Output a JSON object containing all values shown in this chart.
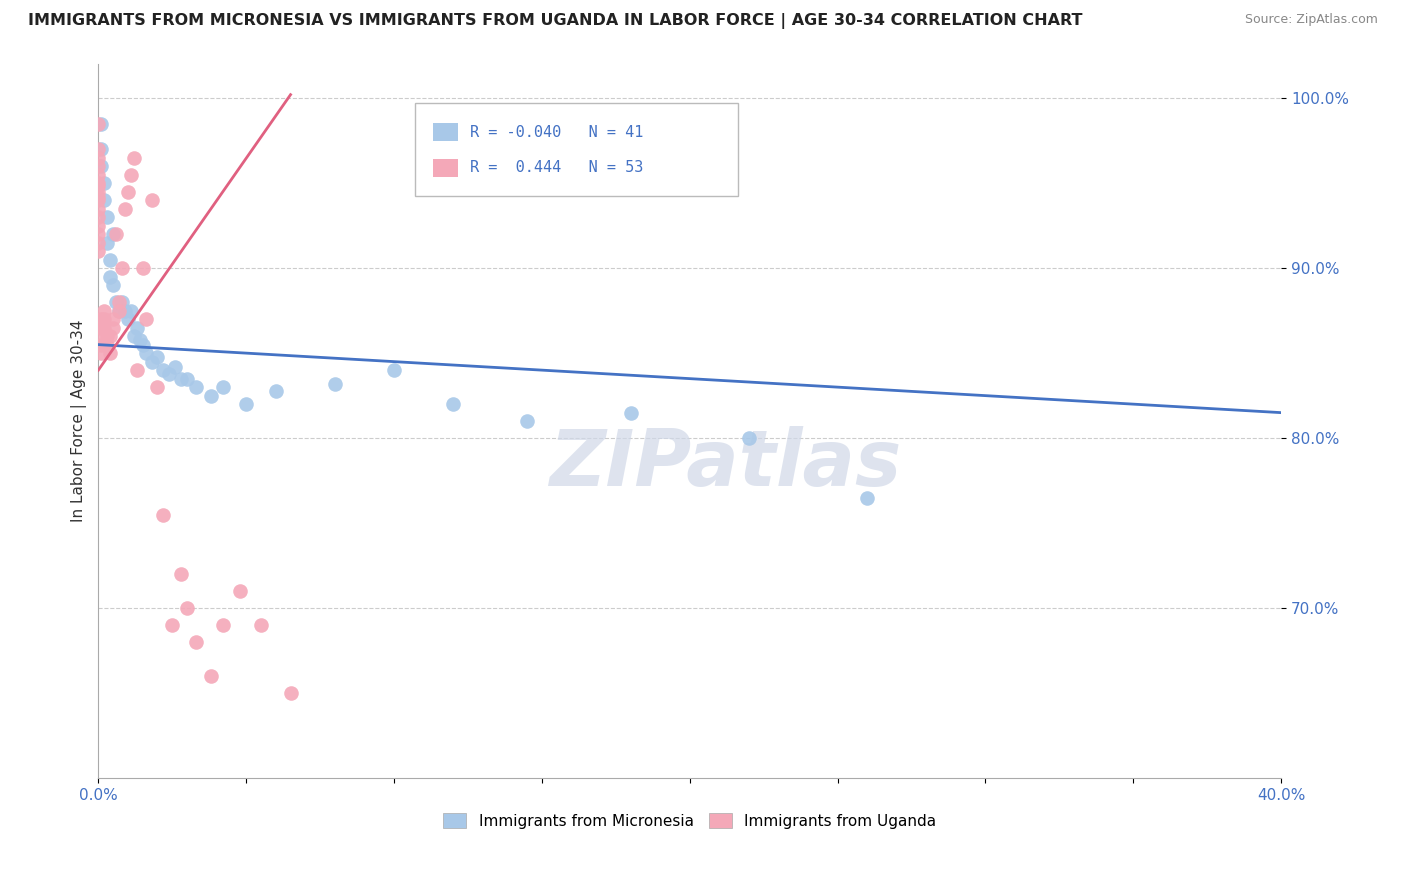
{
  "title": "IMMIGRANTS FROM MICRONESIA VS IMMIGRANTS FROM UGANDA IN LABOR FORCE | AGE 30-34 CORRELATION CHART",
  "source": "Source: ZipAtlas.com",
  "ylabel": "In Labor Force | Age 30-34",
  "xlim": [
    0.0,
    0.4
  ],
  "ylim": [
    0.6,
    1.02
  ],
  "yticks": [
    0.7,
    0.8,
    0.9,
    1.0
  ],
  "ytick_labels": [
    "70.0%",
    "80.0%",
    "90.0%",
    "100.0%"
  ],
  "xticks": [
    0.0,
    0.05,
    0.1,
    0.15,
    0.2,
    0.25,
    0.3,
    0.35,
    0.4
  ],
  "xtick_labels": [
    "0.0%",
    "",
    "",
    "",
    "",
    "",
    "",
    "",
    "40.0%"
  ],
  "blue_R": -0.04,
  "blue_N": 41,
  "pink_R": 0.444,
  "pink_N": 53,
  "blue_color": "#a8c8e8",
  "pink_color": "#f4a8b8",
  "blue_line_color": "#4472c4",
  "pink_line_color": "#e06080",
  "background_color": "#ffffff",
  "grid_color": "#cccccc",
  "watermark": "ZIPatlas",
  "legend_label_blue": "Immigrants from Micronesia",
  "legend_label_pink": "Immigrants from Uganda",
  "blue_x": [
    0.001,
    0.001,
    0.001,
    0.002,
    0.002,
    0.003,
    0.003,
    0.004,
    0.004,
    0.005,
    0.005,
    0.006,
    0.007,
    0.008,
    0.009,
    0.01,
    0.011,
    0.012,
    0.013,
    0.014,
    0.015,
    0.016,
    0.018,
    0.02,
    0.022,
    0.024,
    0.026,
    0.028,
    0.03,
    0.033,
    0.038,
    0.042,
    0.05,
    0.06,
    0.08,
    0.1,
    0.12,
    0.145,
    0.18,
    0.22,
    0.26
  ],
  "blue_y": [
    0.985,
    0.97,
    0.96,
    0.94,
    0.95,
    0.93,
    0.915,
    0.895,
    0.905,
    0.89,
    0.92,
    0.88,
    0.875,
    0.88,
    0.875,
    0.87,
    0.875,
    0.86,
    0.865,
    0.858,
    0.855,
    0.85,
    0.845,
    0.848,
    0.84,
    0.838,
    0.842,
    0.835,
    0.835,
    0.83,
    0.825,
    0.83,
    0.82,
    0.828,
    0.832,
    0.84,
    0.82,
    0.81,
    0.815,
    0.8,
    0.765
  ],
  "pink_x": [
    0.0,
    0.0,
    0.0,
    0.0,
    0.0,
    0.0,
    0.0,
    0.0,
    0.0,
    0.0,
    0.0,
    0.0,
    0.0,
    0.0,
    0.0,
    0.0,
    0.001,
    0.001,
    0.001,
    0.001,
    0.001,
    0.002,
    0.002,
    0.002,
    0.003,
    0.003,
    0.004,
    0.004,
    0.005,
    0.005,
    0.006,
    0.007,
    0.007,
    0.008,
    0.009,
    0.01,
    0.011,
    0.012,
    0.013,
    0.015,
    0.016,
    0.018,
    0.02,
    0.022,
    0.025,
    0.028,
    0.03,
    0.033,
    0.038,
    0.042,
    0.048,
    0.055,
    0.065
  ],
  "pink_y": [
    0.985,
    0.97,
    0.965,
    0.96,
    0.955,
    0.95,
    0.948,
    0.945,
    0.942,
    0.94,
    0.935,
    0.93,
    0.925,
    0.92,
    0.915,
    0.91,
    0.87,
    0.865,
    0.86,
    0.855,
    0.85,
    0.875,
    0.87,
    0.865,
    0.86,
    0.855,
    0.85,
    0.86,
    0.87,
    0.865,
    0.92,
    0.875,
    0.88,
    0.9,
    0.935,
    0.945,
    0.955,
    0.965,
    0.84,
    0.9,
    0.87,
    0.94,
    0.83,
    0.755,
    0.69,
    0.72,
    0.7,
    0.68,
    0.66,
    0.69,
    0.71,
    0.69,
    0.65
  ],
  "blue_trend_x": [
    0.0,
    0.4
  ],
  "blue_trend_y": [
    0.855,
    0.815
  ],
  "pink_trend_x": [
    0.0,
    0.065
  ],
  "pink_trend_y": [
    0.84,
    1.002
  ]
}
